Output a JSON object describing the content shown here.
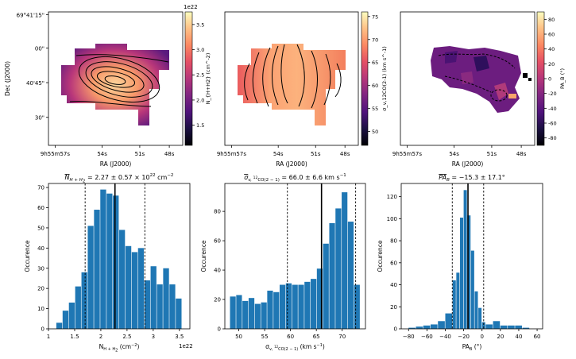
{
  "chart_data": [
    {
      "type": "heatmap",
      "panel": "column-density-map",
      "title": "",
      "xlabel": "RA (J2000)",
      "ylabel": "Dec (J2000)",
      "xticks": [
        "9h55m57s",
        "54s",
        "51s",
        "48s"
      ],
      "yticks": [
        "69°41'15\"",
        "00\"",
        "40'45\"",
        "30\""
      ],
      "colorbar_label": "N_{H+H2} (cm^-2)",
      "colorbar_ticks": [
        "1.5",
        "2.0",
        "2.5",
        "3.0",
        "3.5"
      ],
      "colorbar_range": [
        1.1,
        3.75
      ],
      "colorbar_exponent": "1e22",
      "colormap": "magma"
    },
    {
      "type": "heatmap",
      "panel": "velocity-dispersion-map",
      "title": "",
      "xlabel": "RA (J2000)",
      "ylabel": "",
      "xticks": [
        "9h55m57s",
        "54s",
        "51s",
        "48s"
      ],
      "colorbar_label": "σ_v,12CO(2-1) (km s^-1)",
      "colorbar_ticks": [
        "50",
        "55",
        "60",
        "65",
        "70",
        "75"
      ],
      "colorbar_range": [
        47,
        76
      ],
      "colormap": "magma"
    },
    {
      "type": "heatmap",
      "panel": "position-angle-map",
      "title": "",
      "xlabel": "RA (J2000)",
      "ylabel": "",
      "xticks": [
        "9h55m57s",
        "54s",
        "51s",
        "48s"
      ],
      "colorbar_label": "PA_B (°)",
      "colorbar_ticks": [
        "-80",
        "-60",
        "-40",
        "-20",
        "0",
        "20",
        "40",
        "60",
        "80"
      ],
      "colorbar_range": [
        -90,
        90
      ],
      "colormap": "magma"
    },
    {
      "type": "bar",
      "panel": "column-density-histogram",
      "title": "N̄_{H+H2} = 2.27 ± 0.57 × 10^22 cm^-2",
      "title_parts": {
        "lhs": "N",
        "sub": "H + H",
        "sub2": "2",
        "rhs": " = 2.27 ± 0.57 × 10",
        "exp": "22",
        "unit": " cm",
        "unit_exp": "−2"
      },
      "xlabel_parts": {
        "main": "N",
        "sub": "H + H",
        "sub2": "2",
        "unit": " (cm",
        "unit_exp": "−2",
        "close": ")"
      },
      "xlabel": "N_{H+H2} (cm^-2)",
      "ylabel": "Occurence",
      "x_exponent": "1e22",
      "bin_edges": [
        1.15,
        1.27,
        1.39,
        1.51,
        1.63,
        1.75,
        1.87,
        1.99,
        2.11,
        2.23,
        2.35,
        2.47,
        2.59,
        2.71,
        2.83,
        2.95,
        3.07,
        3.19,
        3.31,
        3.43,
        3.55
      ],
      "values": [
        3,
        9,
        13,
        21,
        28,
        51,
        59,
        69,
        67,
        66,
        49,
        41,
        38,
        40,
        24,
        31,
        22,
        30,
        22,
        15
      ],
      "xlim": [
        1.0,
        3.7
      ],
      "ylim": [
        0,
        72
      ],
      "xticks": [
        1.0,
        1.5,
        2.0,
        2.5,
        3.0,
        3.5
      ],
      "yticks": [
        0,
        10,
        20,
        30,
        40,
        50,
        60,
        70
      ],
      "mean": 2.27,
      "std_lines": [
        1.7,
        2.84
      ]
    },
    {
      "type": "bar",
      "panel": "velocity-dispersion-histogram",
      "title": "σ̄_v,12CO(2-1) = 66.0 ± 6.6 km s^-1",
      "title_parts": {
        "lhs": "σ",
        "sub": "v, ",
        "iso": "12",
        "sub2": "CO(2 − 1)",
        "rhs": " = 66.0 ± 6.6 km s",
        "unit_exp": "−1"
      },
      "xlabel_parts": {
        "main": "σ",
        "sub": "v, ",
        "iso": "12",
        "sub2": "CO(2 − 1)",
        "unit": " (km s",
        "unit_exp": "−1",
        "close": ")"
      },
      "xlabel": "σ_v,12CO(2-1) (km s^-1)",
      "ylabel": "Occurence",
      "bin_edges": [
        48.3,
        49.5,
        50.7,
        51.9,
        53.1,
        54.3,
        55.5,
        56.7,
        57.9,
        59.1,
        60.3,
        61.5,
        62.7,
        63.9,
        65.1,
        66.3,
        67.5,
        68.7,
        69.9,
        71.1,
        72.3,
        73.5
      ],
      "values": [
        22,
        23,
        19,
        21,
        17,
        18,
        26,
        25,
        30,
        31,
        30,
        30,
        32,
        34,
        41,
        58,
        72,
        82,
        93,
        73,
        30
      ],
      "xlim": [
        47.3,
        74.5
      ],
      "ylim": [
        0,
        99
      ],
      "xticks": [
        50,
        55,
        60,
        65,
        70
      ],
      "yticks": [
        0,
        20,
        40,
        60,
        80
      ],
      "mean": 66.0,
      "std_lines": [
        59.4,
        72.6
      ]
    },
    {
      "type": "bar",
      "panel": "position-angle-histogram",
      "title": "P̄A_B = −15.3 ± 17.1°",
      "title_parts": {
        "lhs": "PA",
        "sub": "B",
        "rhs": " = −15.3 ± 17.1°"
      },
      "xlabel_parts": {
        "main": "PA",
        "sub": "B",
        "unit": " (°)"
      },
      "xlabel": "PA_B (°)",
      "ylabel": "Occurence",
      "bin_edges": [
        -80,
        -72,
        -64,
        -56,
        -48,
        -40,
        -32,
        -28,
        -24,
        -20,
        -16,
        -12,
        -8,
        -4,
        0,
        4,
        12,
        20,
        28,
        36,
        44,
        52
      ],
      "values": [
        1,
        2,
        3,
        4,
        7,
        14,
        44,
        51,
        101,
        126,
        103,
        71,
        34,
        19,
        6,
        4,
        7,
        3,
        3,
        3,
        1
      ],
      "xlim": [
        -88,
        66
      ],
      "ylim": [
        0,
        132
      ],
      "xticks": [
        -80,
        -60,
        -40,
        -20,
        0,
        20,
        40,
        60
      ],
      "yticks": [
        0,
        20,
        40,
        60,
        80,
        100,
        120
      ],
      "mean": -15.3,
      "std_lines": [
        -32.4,
        1.8
      ]
    }
  ]
}
